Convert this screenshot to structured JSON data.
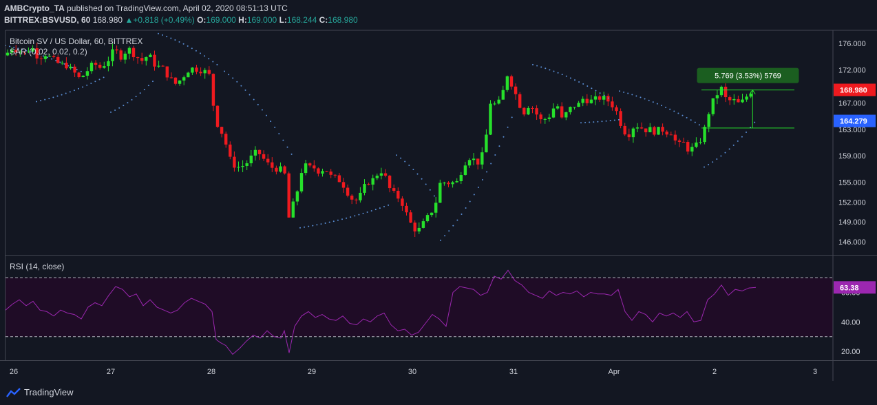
{
  "header": {
    "line1": {
      "author": "AMBCrypto_TA",
      "text": " published on TradingView.com, April 02, 2020 08:51:13 UTC"
    },
    "line2": {
      "symbol": "BITTREX:BSVUSD, 60",
      "price": "168.980",
      "change": "+0.818 (+0.49%)",
      "o_label": "O:",
      "o": "169.000",
      "h_label": "H:",
      "h": "169.000",
      "l_label": "L:",
      "l": "168.244",
      "c_label": "C:",
      "c": "168.980"
    }
  },
  "footer": {
    "brand": "TradingView"
  },
  "colors": {
    "background": "#131722",
    "up": "#26e02b",
    "down": "#ef1a1f",
    "sar": "#5b8fd6",
    "rsi_line": "#9c27b0",
    "rsi_band": "#1f0c26",
    "price_badge": "#ef1a1f",
    "sar_badge": "#2962ff",
    "rsi_badge": "#9c27b0",
    "measure": "#26e02b",
    "measure_box": "#1b5e20"
  },
  "chart_data": [
    {
      "type": "candlestick",
      "title": "Bitcoin SV / US Dollar, 60, BITTREX",
      "indicator_label": "SAR (0.02, 0.02, 0.2)",
      "ylim": [
        144.0,
        178.0
      ],
      "y_ticks": [
        "176.000",
        "172.000",
        "167.000",
        "163.000",
        "159.000",
        "155.000",
        "152.000",
        "149.000",
        "146.000"
      ],
      "y_tick_values": [
        176,
        172,
        167,
        163,
        159,
        155,
        152,
        149,
        146
      ],
      "x_ticks": [
        "26",
        "27",
        "28",
        "29",
        "30",
        "31",
        "Apr",
        "2",
        "3"
      ],
      "x_tick_times": [
        12,
        153,
        299,
        445,
        591,
        738,
        884,
        1030,
        1176
      ],
      "last_price": "168.980",
      "last_price_value": 168.98,
      "sar_value": "164.279",
      "sar_value_num": 164.279,
      "measure": {
        "label": "5.769 (3.53%) 5769",
        "from": 163.2,
        "to": 168.97,
        "t_start": 1011,
        "t_end": 1146
      },
      "anchors": [
        [
          0,
          174.2
        ],
        [
          8,
          175.3
        ],
        [
          18,
          175.0
        ],
        [
          28,
          174.5
        ],
        [
          38,
          175.5
        ],
        [
          48,
          173.8
        ],
        [
          58,
          174.4
        ],
        [
          68,
          173.6
        ],
        [
          78,
          172.9
        ],
        [
          88,
          172.7
        ],
        [
          98,
          171.8
        ],
        [
          108,
          170.6
        ],
        [
          118,
          171.8
        ],
        [
          128,
          173.0
        ],
        [
          138,
          172.3
        ],
        [
          148,
          173.3
        ],
        [
          158,
          175.1
        ],
        [
          168,
          174.0
        ],
        [
          178,
          175.3
        ],
        [
          188,
          174.2
        ],
        [
          198,
          173.4
        ],
        [
          208,
          174.3
        ],
        [
          218,
          172.6
        ],
        [
          228,
          172.3
        ],
        [
          238,
          170.8
        ],
        [
          248,
          169.8
        ],
        [
          258,
          171.0
        ],
        [
          268,
          172.3
        ],
        [
          278,
          172.1
        ],
        [
          288,
          171.9
        ],
        [
          298,
          171.0
        ],
        [
          304,
          164.4
        ],
        [
          310,
          163.5
        ],
        [
          318,
          161.6
        ],
        [
          328,
          157.8
        ],
        [
          338,
          157.3
        ],
        [
          348,
          157.6
        ],
        [
          358,
          158.9
        ],
        [
          366,
          159.7
        ],
        [
          375,
          158.5
        ],
        [
          385,
          157.3
        ],
        [
          395,
          157.0
        ],
        [
          405,
          156.8
        ],
        [
          412,
          149.3
        ],
        [
          418,
          151.7
        ],
        [
          425,
          154.1
        ],
        [
          432,
          157.7
        ],
        [
          440,
          157.2
        ],
        [
          448,
          157.2
        ],
        [
          456,
          156.6
        ],
        [
          464,
          157.2
        ],
        [
          472,
          155.9
        ],
        [
          480,
          155.6
        ],
        [
          488,
          155.1
        ],
        [
          496,
          153.6
        ],
        [
          504,
          152.4
        ],
        [
          512,
          152.2
        ],
        [
          520,
          154.1
        ],
        [
          528,
          155.1
        ],
        [
          536,
          155.5
        ],
        [
          544,
          157.0
        ],
        [
          552,
          155.7
        ],
        [
          560,
          153.5
        ],
        [
          568,
          153.0
        ],
        [
          576,
          151.9
        ],
        [
          584,
          149.8
        ],
        [
          592,
          148.0
        ],
        [
          600,
          147.7
        ],
        [
          608,
          148.9
        ],
        [
          616,
          150.1
        ],
        [
          624,
          151.5
        ],
        [
          632,
          155.1
        ],
        [
          640,
          154.9
        ],
        [
          648,
          154.9
        ],
        [
          656,
          155.0
        ],
        [
          664,
          157.2
        ],
        [
          672,
          158.9
        ],
        [
          680,
          158.4
        ],
        [
          688,
          157.9
        ],
        [
          696,
          160.0
        ],
        [
          704,
          167.1
        ],
        [
          712,
          166.7
        ],
        [
          720,
          167.3
        ],
        [
          728,
          171.5
        ],
        [
          736,
          169.7
        ],
        [
          744,
          167.5
        ],
        [
          752,
          165.4
        ],
        [
          760,
          166.7
        ],
        [
          768,
          166.1
        ],
        [
          776,
          164.3
        ],
        [
          784,
          164.6
        ],
        [
          792,
          165.2
        ],
        [
          800,
          167.2
        ],
        [
          808,
          164.5
        ],
        [
          816,
          165.6
        ],
        [
          824,
          166.6
        ],
        [
          832,
          166.7
        ],
        [
          840,
          167.8
        ],
        [
          848,
          167.2
        ],
        [
          856,
          167.5
        ],
        [
          864,
          167.8
        ],
        [
          872,
          167.6
        ],
        [
          880,
          166.9
        ],
        [
          888,
          165.6
        ],
        [
          896,
          163.2
        ],
        [
          904,
          162.0
        ],
        [
          912,
          163.4
        ],
        [
          920,
          163.6
        ],
        [
          928,
          162.9
        ],
        [
          936,
          163.0
        ],
        [
          944,
          162.6
        ],
        [
          952,
          163.1
        ],
        [
          960,
          162.6
        ],
        [
          968,
          162.6
        ],
        [
          976,
          160.4
        ],
        [
          984,
          161.1
        ],
        [
          992,
          159.9
        ],
        [
          1000,
          160.2
        ],
        [
          1008,
          161.0
        ],
        [
          1016,
          163.2
        ],
        [
          1024,
          166.5
        ],
        [
          1032,
          168.1
        ],
        [
          1040,
          169.2
        ],
        [
          1048,
          167.2
        ],
        [
          1056,
          167.5
        ],
        [
          1064,
          166.9
        ],
        [
          1072,
          167.3
        ],
        [
          1080,
          168.5
        ],
        [
          1085,
          168.98
        ]
      ],
      "sar_segments": [
        {
          "t": [
            0,
            115
          ],
          "v": [
            175.7,
            171.5
          ]
        },
        {
          "t": [
            45,
            145
          ],
          "v": [
            167.2,
            171.0
          ]
        },
        {
          "t": [
            153,
            218
          ],
          "v": [
            165.6,
            170.7
          ]
        },
        {
          "t": [
            222,
            310
          ],
          "v": [
            177.5,
            172.6
          ]
        },
        {
          "t": [
            318,
            418
          ],
          "v": [
            171.8,
            158.8
          ]
        },
        {
          "t": [
            428,
            558
          ],
          "v": [
            148.1,
            151.6
          ]
        },
        {
          "t": [
            568,
            628
          ],
          "v": [
            159.1,
            152.1
          ]
        },
        {
          "t": [
            632,
            738
          ],
          "v": [
            146.2,
            165.4
          ]
        },
        {
          "t": [
            766,
            878
          ],
          "v": [
            172.8,
            167.6
          ]
        },
        {
          "t": [
            836,
            895
          ],
          "v": [
            164.0,
            164.5
          ]
        },
        {
          "t": [
            892,
            1011
          ],
          "v": [
            168.8,
            163.5
          ]
        },
        {
          "t": [
            1015,
            1090
          ],
          "v": [
            157.3,
            164.3
          ]
        }
      ]
    },
    {
      "type": "line",
      "title": "RSI (14, close)",
      "ylim": [
        14,
        85
      ],
      "y_ticks": [
        "60.00",
        "40.00",
        "20.00"
      ],
      "y_tick_values": [
        60,
        40,
        20
      ],
      "bands": [
        70,
        30
      ],
      "last_value": "63.38",
      "last_value_num": 63.38,
      "x": [
        0,
        10,
        20,
        30,
        40,
        50,
        60,
        70,
        80,
        90,
        100,
        110,
        120,
        130,
        140,
        150,
        160,
        170,
        180,
        190,
        200,
        210,
        220,
        230,
        240,
        250,
        260,
        270,
        280,
        290,
        300,
        306,
        312,
        320,
        330,
        340,
        350,
        360,
        370,
        380,
        390,
        400,
        405,
        412,
        420,
        430,
        440,
        450,
        460,
        470,
        480,
        490,
        500,
        510,
        520,
        530,
        540,
        550,
        560,
        570,
        580,
        590,
        600,
        610,
        620,
        630,
        640,
        650,
        660,
        670,
        680,
        690,
        700,
        710,
        720,
        730,
        740,
        750,
        760,
        770,
        780,
        790,
        800,
        810,
        820,
        830,
        840,
        850,
        860,
        870,
        880,
        890,
        900,
        910,
        920,
        930,
        940,
        950,
        960,
        970,
        980,
        990,
        1000,
        1010,
        1020,
        1030,
        1040,
        1050,
        1060,
        1070,
        1080,
        1090
      ],
      "values": [
        48,
        52,
        55,
        51,
        54,
        48,
        47,
        44,
        48,
        46,
        45,
        42,
        50,
        53,
        51,
        58,
        64,
        62,
        57,
        59,
        51,
        55,
        50,
        48,
        46,
        48,
        53,
        56,
        54,
        52,
        47,
        28,
        26,
        24,
        18,
        22,
        27,
        31,
        29,
        34,
        30,
        29,
        34,
        19,
        37,
        44,
        47,
        43,
        45,
        42,
        41,
        44,
        39,
        38,
        42,
        40,
        44,
        46,
        38,
        34,
        35,
        31,
        33,
        39,
        45,
        42,
        37,
        60,
        64,
        63,
        62,
        58,
        60,
        71,
        69,
        75,
        68,
        65,
        60,
        58,
        56,
        61,
        58,
        60,
        59,
        61,
        57,
        60,
        59,
        59,
        58,
        62,
        47,
        41,
        47,
        45,
        40,
        46,
        44,
        46,
        43,
        47,
        40,
        41,
        55,
        59,
        65,
        58,
        62,
        61,
        63,
        63.38
      ]
    }
  ]
}
